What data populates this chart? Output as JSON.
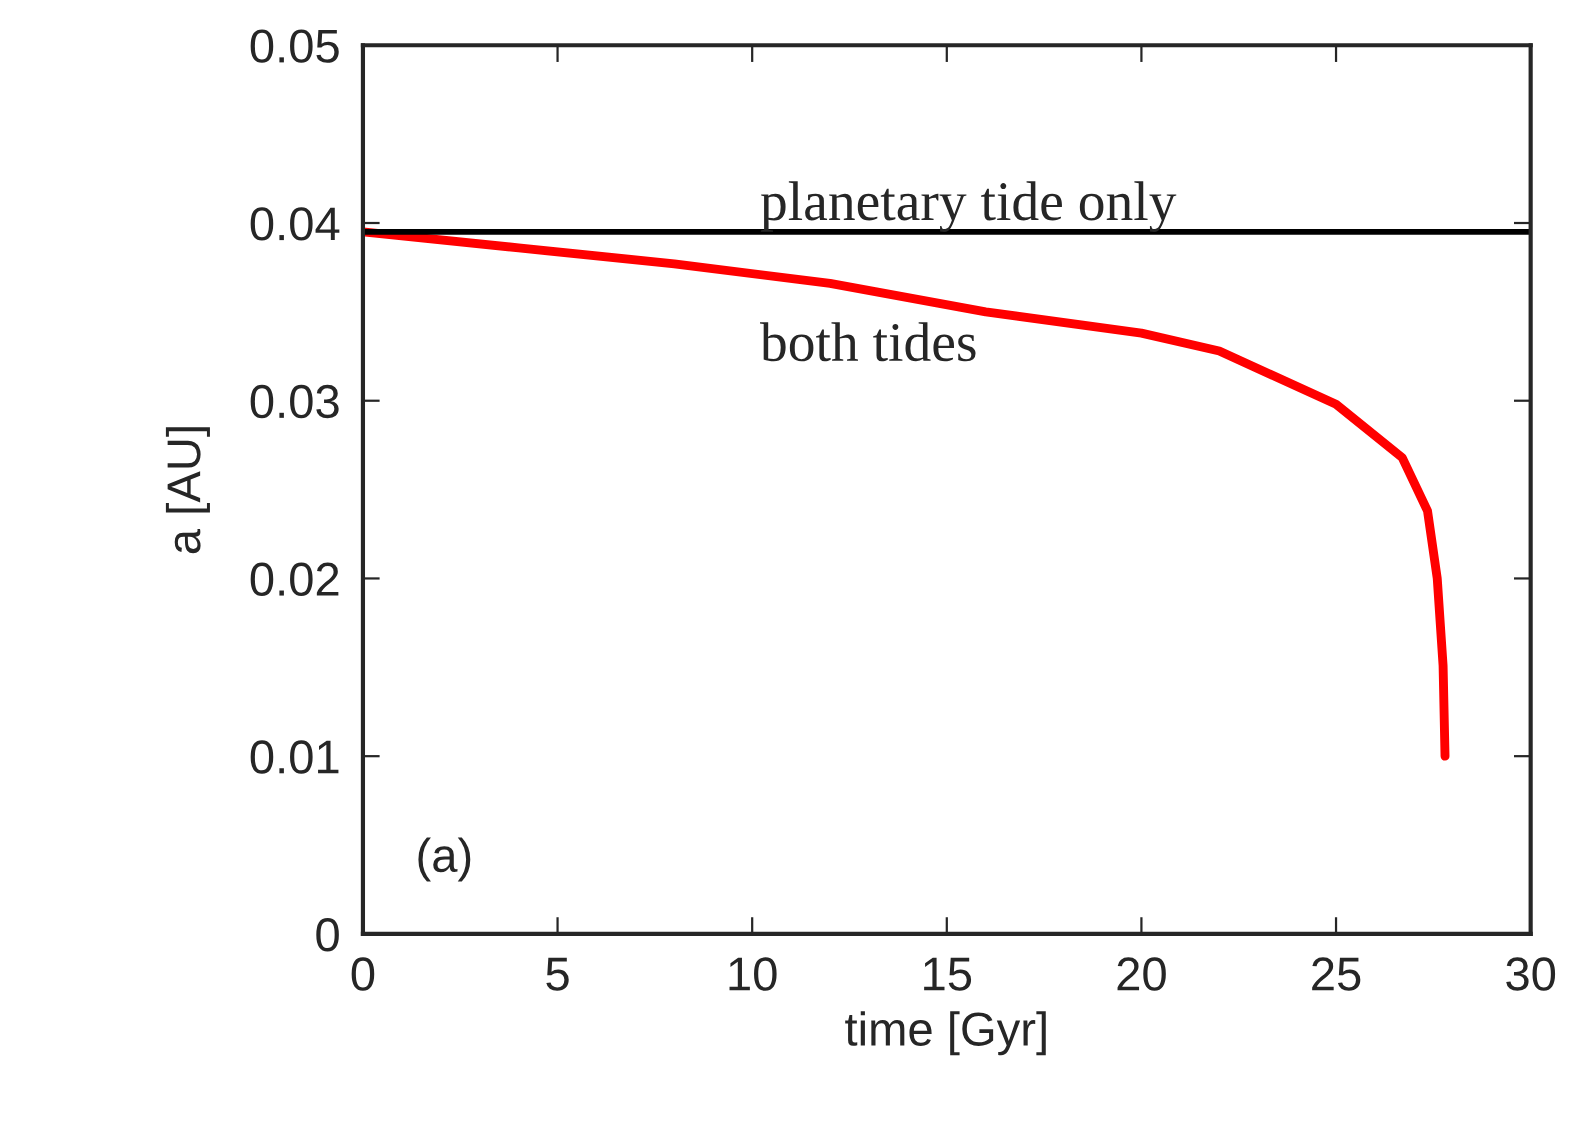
{
  "chart_data": {
    "type": "line",
    "xlabel": "time [Gyr]",
    "ylabel": "a [AU]",
    "x": [
      0,
      4,
      8,
      12,
      16,
      20,
      22,
      25,
      26.7,
      27.35,
      27.6,
      27.75,
      27.8
    ],
    "series": [
      {
        "color": "#ff0000",
        "values": [
          0.0395,
          0.0386,
          0.0377,
          0.0366,
          0.035,
          0.0338,
          0.0328,
          0.0298,
          0.0268,
          0.0238,
          0.02,
          0.0151,
          0.01
        ]
      }
    ],
    "xlim": [
      0,
      30
    ],
    "xticks": [
      0,
      5,
      10,
      15,
      20,
      25,
      30
    ],
    "ylim": [
      0,
      0.05
    ],
    "yticks": [
      {
        "value": 0,
        "label": "0"
      },
      0.01,
      0.02,
      0.03,
      0.04,
      0.05
    ],
    "ref_lines": [
      {
        "axis": "y",
        "value": 0.0395,
        "label": "planetary tide only",
        "color": "#000000"
      }
    ],
    "annotations": [
      "both tides",
      "(a)"
    ],
    "grid": false,
    "legend": false
  }
}
